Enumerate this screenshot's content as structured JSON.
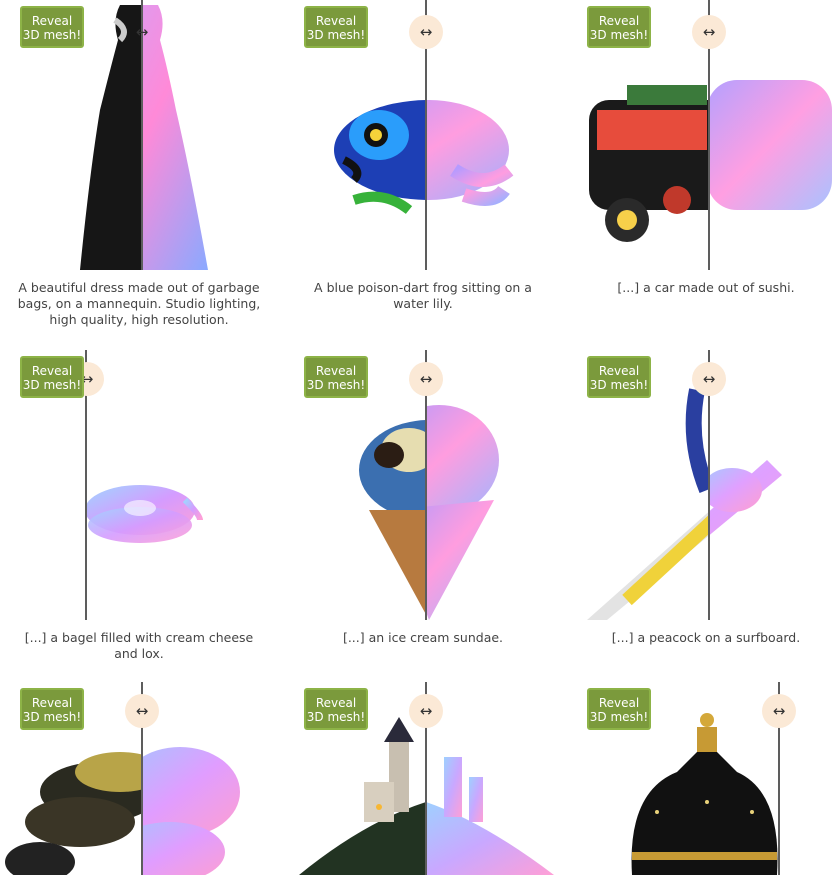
{
  "reveal_button": {
    "line1": "Reveal",
    "line2": "3D mesh!"
  },
  "handle_icon": "left-right-arrow-icon",
  "colors": {
    "button_bg": "#7b9a3c",
    "handle_bg": "#fbe9d6",
    "divider": "#5d5d5d"
  },
  "items": [
    {
      "caption": "A beautiful dress made out of garbage bags, on a mannequin. Studio lighting, high quality, high resolution."
    },
    {
      "caption": "A blue poison-dart frog sitting on a water lily."
    },
    {
      "caption": "[...] a car made out of sushi."
    },
    {
      "caption": "[...] a bagel filled with cream cheese and lox."
    },
    {
      "caption": "[...] an ice cream sundae."
    },
    {
      "caption": "[...] a peacock on a surfboard."
    },
    {
      "caption": ""
    },
    {
      "caption": ""
    },
    {
      "caption": ""
    }
  ]
}
